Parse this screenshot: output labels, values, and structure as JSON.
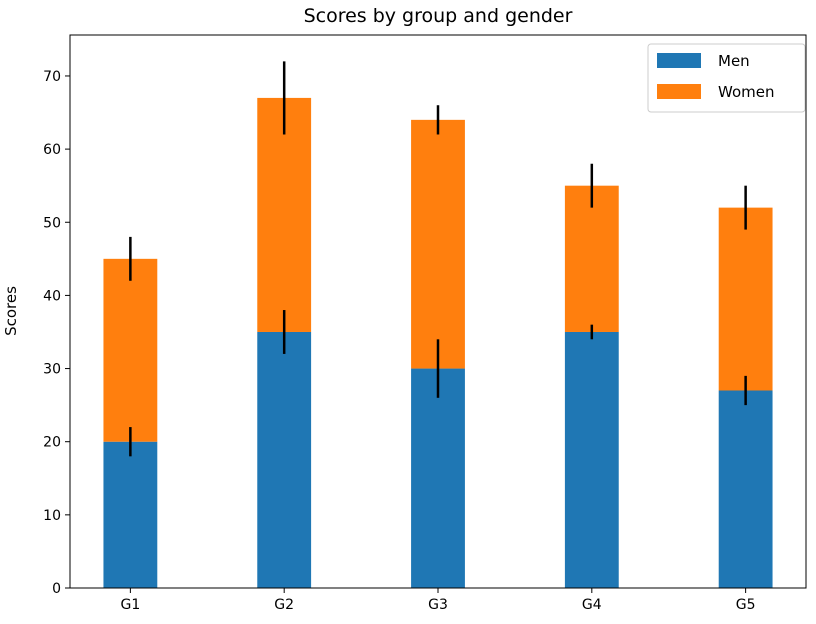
{
  "chart_data": {
    "type": "bar",
    "stacked": true,
    "title": "Scores by group and gender",
    "xlabel": "",
    "ylabel": "Scores",
    "categories": [
      "G1",
      "G2",
      "G3",
      "G4",
      "G5"
    ],
    "series": [
      {
        "name": "Men",
        "values": [
          20,
          35,
          30,
          35,
          27
        ],
        "errors": [
          2,
          3,
          4,
          1,
          2
        ],
        "color": "#1f77b4"
      },
      {
        "name": "Women",
        "values": [
          25,
          32,
          34,
          20,
          25
        ],
        "errors": [
          3,
          5,
          2,
          3,
          3
        ],
        "color": "#ff7f0e"
      }
    ],
    "ylim": [
      0,
      75.6
    ],
    "yticks": [
      0,
      10,
      20,
      30,
      40,
      50,
      60,
      70
    ],
    "grid": false,
    "legend_position": "top-right"
  }
}
